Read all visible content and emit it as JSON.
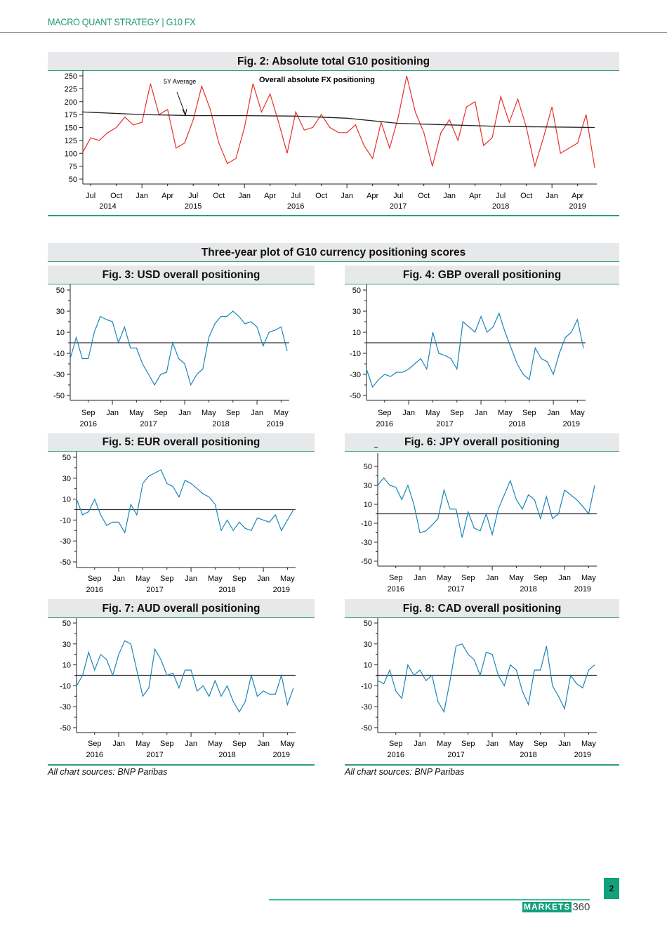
{
  "header": {
    "title": "MACRO QUANT STRATEGY | G10 FX"
  },
  "section_title": "Three-year plot of G10 currency positioning scores",
  "sources": [
    "All chart sources: BNP Paribas",
    "All chart sources: BNP Paribas"
  ],
  "footer": {
    "page_number": "2",
    "logo_brand": "MARKETS",
    "logo_number": "360"
  },
  "colors": {
    "accent": "#2f9e78",
    "fig2_line": "#e8302a",
    "average_line": "#222222",
    "positioning_line": "#1a86b8"
  },
  "chart_data": [
    {
      "id": "fig2",
      "type": "line",
      "title": "Fig. 2: Absolute total G10 positioning",
      "annotations": [
        "5Y Average",
        "Overall absolute FX positioning"
      ],
      "ylim": [
        50,
        250
      ],
      "yticks": [
        50,
        75,
        100,
        125,
        150,
        175,
        200,
        225,
        250
      ],
      "xlim": [
        "2014-06",
        "2019-06"
      ],
      "grid": false,
      "xticks": [
        "2014-07",
        "2014-10",
        "2015-01",
        "2015-04",
        "2015-07",
        "2015-10",
        "2016-01",
        "2016-04",
        "2016-07",
        "2016-10",
        "2017-01",
        "2017-04",
        "2017-07",
        "2017-10",
        "2018-01",
        "2018-04",
        "2018-07",
        "2018-10",
        "2019-01",
        "2019-04"
      ],
      "xtick_labels": [
        "Jul",
        "Oct",
        "Jan",
        "Apr",
        "Jul",
        "Oct",
        "Jan",
        "Apr",
        "Jul",
        "Oct",
        "Jan",
        "Apr",
        "Jul",
        "Oct",
        "Jan",
        "Apr",
        "Jul",
        "Oct",
        "Jan",
        "Apr"
      ],
      "year_labels": [
        {
          "label": "2014",
          "at": "2014-09"
        },
        {
          "label": "2015",
          "at": "2015-07"
        },
        {
          "label": "2016",
          "at": "2016-07"
        },
        {
          "label": "2017",
          "at": "2017-07"
        },
        {
          "label": "2018",
          "at": "2018-07"
        },
        {
          "label": "2019",
          "at": "2019-04"
        }
      ],
      "series": [
        {
          "name": "Overall absolute FX positioning",
          "start": "2014-06",
          "values": [
            100,
            130,
            125,
            140,
            150,
            170,
            155,
            160,
            235,
            175,
            185,
            110,
            120,
            165,
            230,
            185,
            120,
            80,
            90,
            150,
            235,
            180,
            215,
            160,
            100,
            180,
            145,
            150,
            175,
            150,
            140,
            140,
            155,
            115,
            90,
            160,
            110,
            170,
            250,
            180,
            140,
            75,
            140,
            165,
            125,
            190,
            200,
            115,
            130,
            210,
            160,
            205,
            150,
            75,
            130,
            190,
            100,
            110,
            120,
            175,
            72
          ]
        },
        {
          "name": "5Y Average",
          "x": [
            "2014-06",
            "2015-01",
            "2015-07",
            "2016-01",
            "2016-07",
            "2017-01",
            "2017-07",
            "2018-01",
            "2018-07",
            "2019-01",
            "2019-06"
          ],
          "values": [
            180,
            175,
            173,
            173,
            172,
            168,
            158,
            155,
            152,
            151,
            150
          ]
        }
      ]
    },
    {
      "id": "fig3",
      "type": "line",
      "title": "Fig. 3: USD overall positioning",
      "ylim": [
        -50,
        50
      ],
      "yticks": [
        -50,
        -30,
        -10,
        10,
        30,
        50
      ],
      "zero_line": 0,
      "start": "2016-06",
      "values": [
        -15,
        5,
        -15,
        -15,
        10,
        25,
        22,
        20,
        0,
        15,
        -5,
        -5,
        -20,
        -30,
        -40,
        -30,
        -28,
        0,
        -15,
        -20,
        -40,
        -30,
        -25,
        5,
        18,
        25,
        25,
        30,
        25,
        18,
        20,
        15,
        -3,
        10,
        12,
        15,
        -8
      ]
    },
    {
      "id": "fig4",
      "type": "line",
      "title": "Fig. 4: GBP overall positioning",
      "ylim": [
        -50,
        50
      ],
      "yticks": [
        -50,
        -30,
        -10,
        10,
        30,
        50
      ],
      "zero_line": 0,
      "start": "2016-06",
      "values": [
        -25,
        -42,
        -35,
        -30,
        -32,
        -28,
        -28,
        -25,
        -20,
        -15,
        -25,
        10,
        -10,
        -12,
        -15,
        -25,
        20,
        15,
        10,
        25,
        10,
        15,
        28,
        10,
        -5,
        -20,
        -30,
        -35,
        -5,
        -15,
        -18,
        -30,
        -10,
        5,
        10,
        22,
        -5
      ]
    },
    {
      "id": "fig5",
      "type": "line",
      "title": "Fig. 5: EUR overall positioning",
      "ylim": [
        -50,
        50
      ],
      "yticks": [
        -50,
        -30,
        -10,
        10,
        30,
        50
      ],
      "zero_line": 0,
      "start": "2016-06",
      "values": [
        10,
        -5,
        -2,
        10,
        -5,
        -15,
        -12,
        -12,
        -22,
        5,
        -5,
        25,
        32,
        35,
        38,
        25,
        22,
        12,
        28,
        25,
        20,
        15,
        12,
        5,
        -20,
        -10,
        -20,
        -12,
        -18,
        -20,
        -8,
        -10,
        -12,
        -5,
        -20,
        -10,
        0
      ]
    },
    {
      "id": "fig6",
      "type": "line",
      "title": "Fig. 6: JPY overall positioning",
      "ylim": [
        -50,
        50
      ],
      "yticks": [
        -50,
        -30,
        -10,
        10,
        30,
        50
      ],
      "zero_line": 0,
      "start": "2016-06",
      "values": [
        30,
        38,
        30,
        28,
        15,
        30,
        10,
        -20,
        -18,
        -12,
        -5,
        25,
        5,
        5,
        -25,
        2,
        -15,
        -18,
        0,
        -22,
        5,
        20,
        35,
        15,
        5,
        20,
        15,
        -5,
        18,
        -5,
        0,
        25,
        20,
        15,
        8,
        0,
        30
      ]
    },
    {
      "id": "fig7",
      "type": "line",
      "title": "Fig. 7: AUD overall positioning",
      "ylim": [
        -50,
        50
      ],
      "yticks": [
        -50,
        -30,
        -10,
        10,
        30,
        50
      ],
      "zero_line": 0,
      "start": "2016-06",
      "values": [
        -10,
        0,
        22,
        5,
        20,
        15,
        0,
        20,
        33,
        30,
        5,
        -20,
        -12,
        25,
        15,
        0,
        2,
        -12,
        5,
        5,
        -15,
        -10,
        -20,
        -5,
        -20,
        -10,
        -25,
        -35,
        -25,
        0,
        -20,
        -15,
        -18,
        -18,
        0,
        -28,
        -12
      ]
    },
    {
      "id": "fig8",
      "type": "line",
      "title": "Fig. 8: CAD overall positioning",
      "ylim": [
        -50,
        50
      ],
      "yticks": [
        -50,
        -30,
        -10,
        10,
        30,
        50
      ],
      "zero_line": 0,
      "start": "2016-06",
      "values": [
        -5,
        -8,
        5,
        -15,
        -22,
        10,
        0,
        5,
        -5,
        0,
        -25,
        -35,
        -5,
        28,
        30,
        20,
        15,
        0,
        22,
        20,
        0,
        -10,
        10,
        5,
        -15,
        -28,
        5,
        5,
        28,
        -10,
        -20,
        -32,
        0,
        -8,
        -12,
        5,
        10
      ]
    }
  ],
  "small_axis": {
    "xlim": [
      "2016-06",
      "2019-06"
    ],
    "xticks": [
      "2016-09",
      "2017-01",
      "2017-05",
      "2017-09",
      "2018-01",
      "2018-05",
      "2018-09",
      "2019-01",
      "2019-05"
    ],
    "xtick_labels": [
      "Sep",
      "Jan",
      "May",
      "Sep",
      "Jan",
      "May",
      "Sep",
      "Jan",
      "May"
    ],
    "year_labels": [
      {
        "label": "2016",
        "at": "2016-09"
      },
      {
        "label": "2017",
        "at": "2017-07"
      },
      {
        "label": "2018",
        "at": "2018-07"
      },
      {
        "label": "2019",
        "at": "2019-04"
      }
    ]
  }
}
